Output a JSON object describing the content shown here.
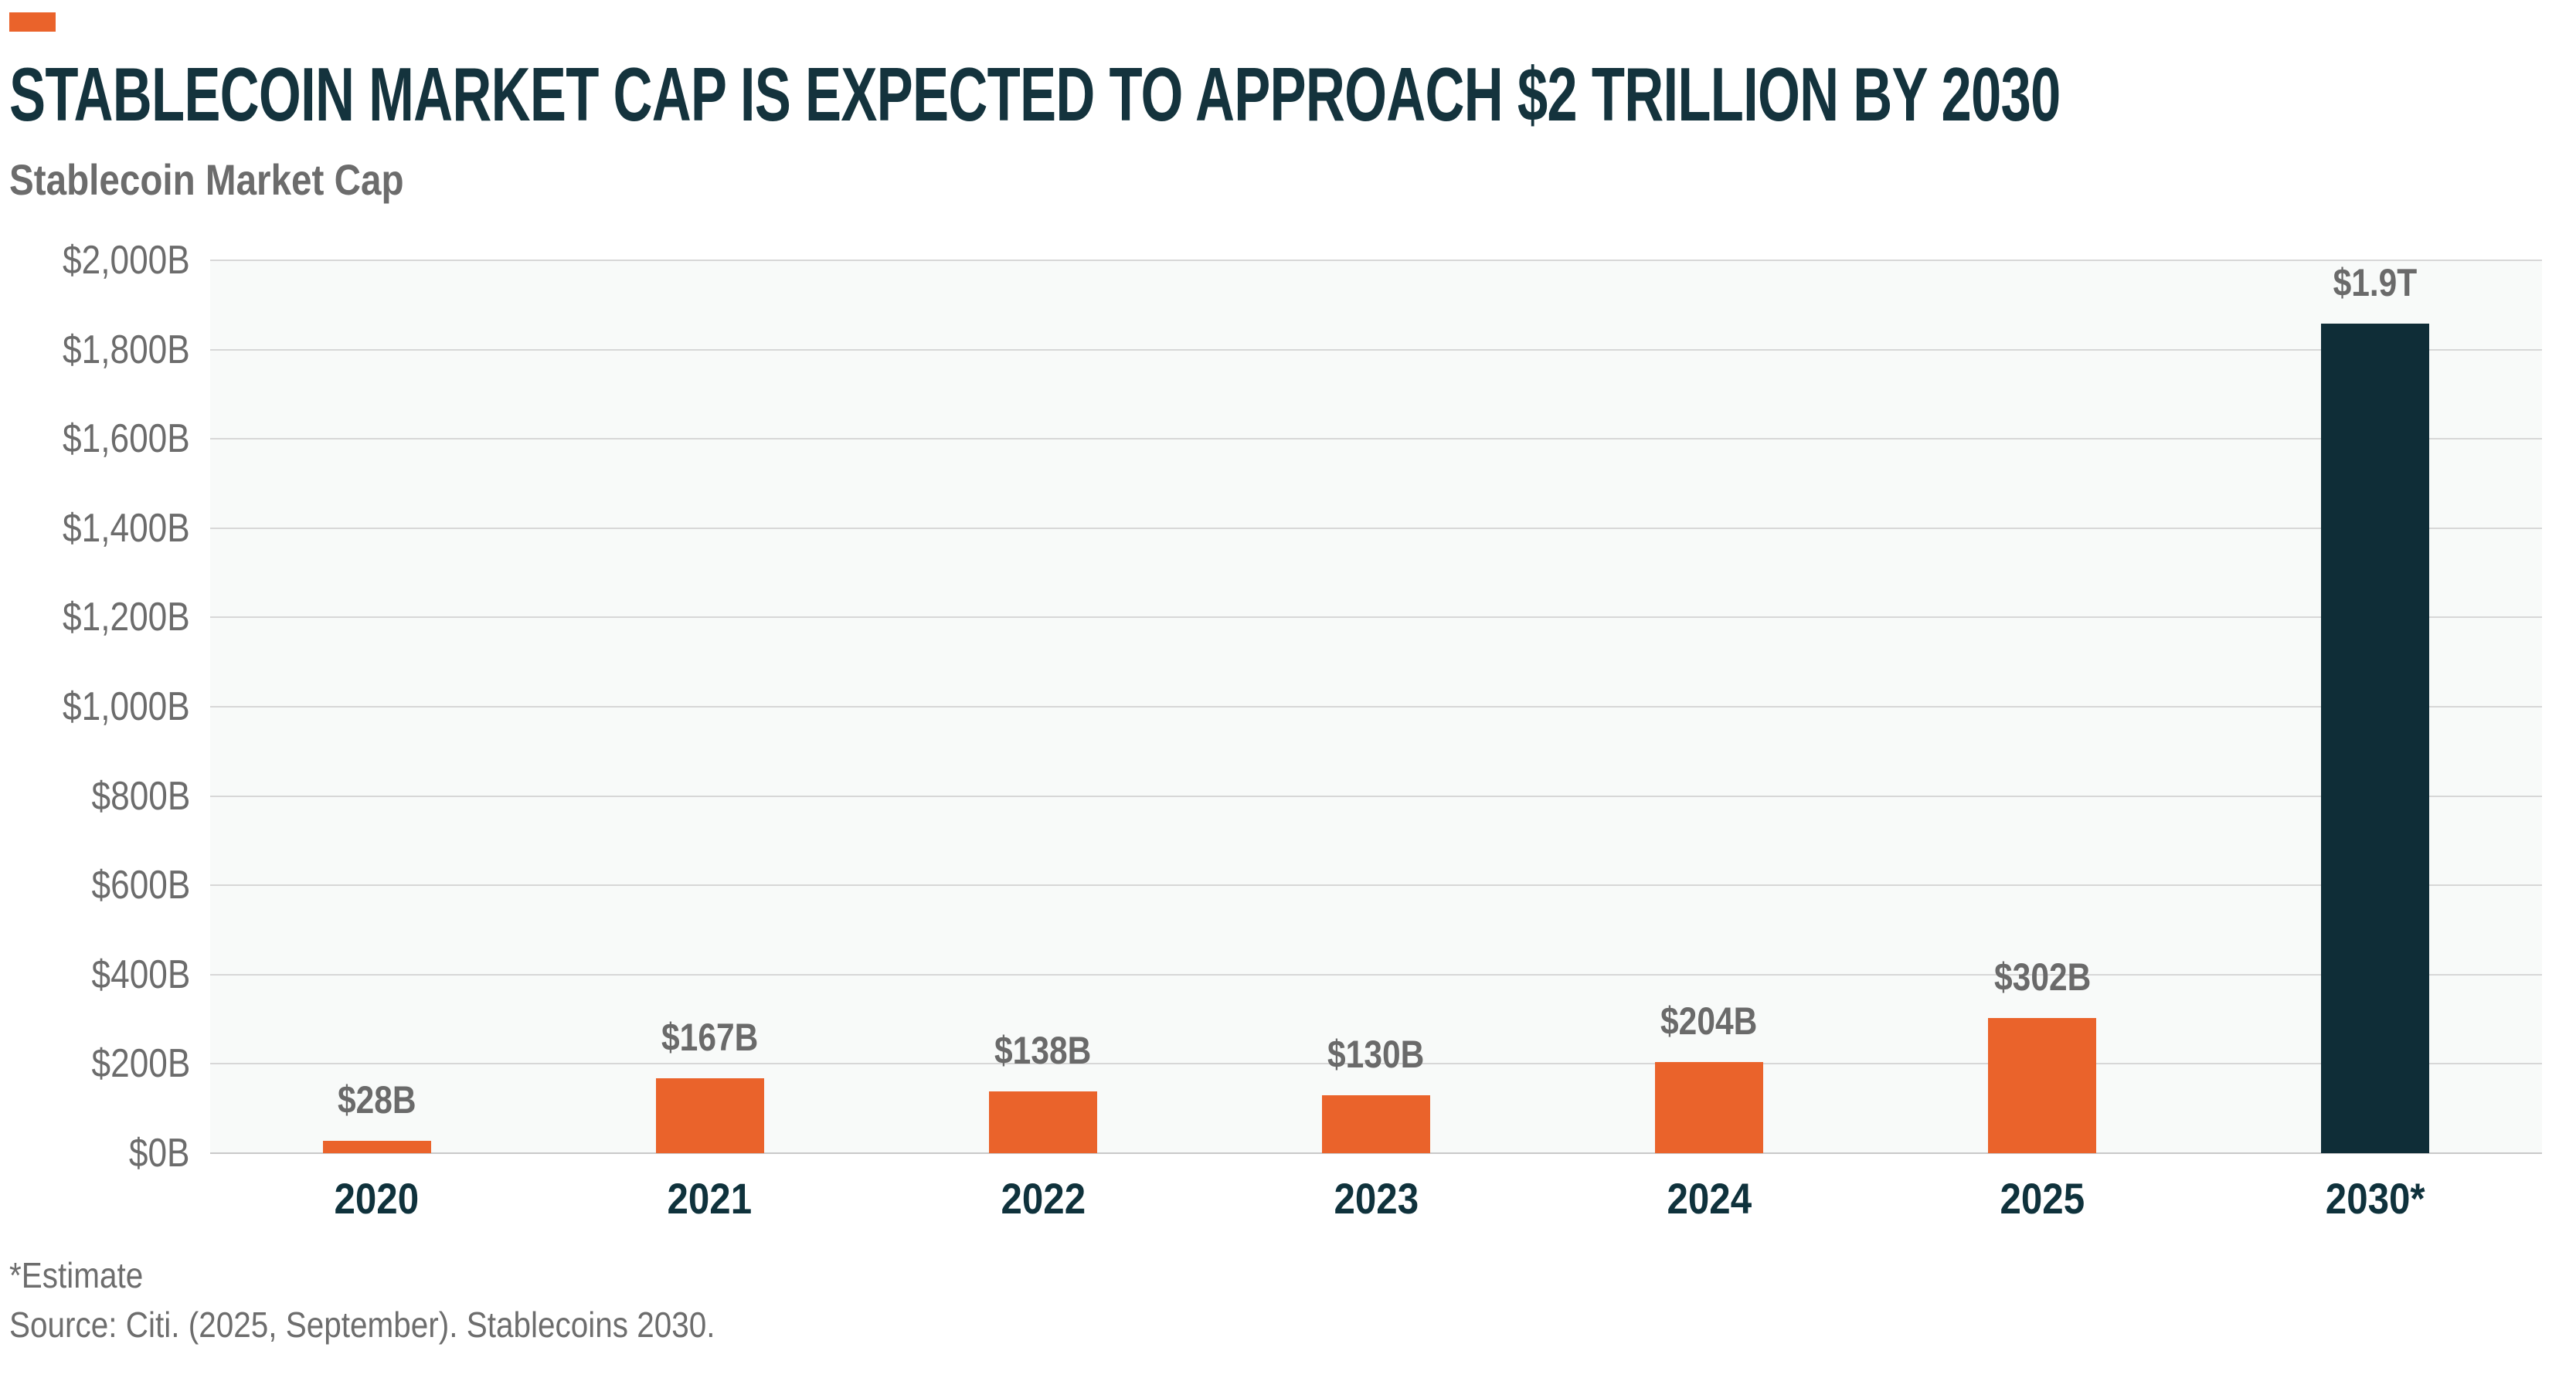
{
  "header": {
    "title": "STABLECOIN MARKET CAP IS EXPECTED TO APPROACH $2 TRILLION BY 2030",
    "subtitle": "Stablecoin Market Cap"
  },
  "footer": {
    "footnote": "*Estimate",
    "source": "Source: Citi. (2025, September). Stablecoins 2030."
  },
  "colors": {
    "accent_orange": "#EA632B",
    "bar_orange": "#EA632B",
    "bar_navy": "#0F2D37",
    "title_navy": "#14333D",
    "label_gray": "#6A6A6A",
    "year_navy": "#0F323C",
    "plot_background": "#F8FAF9",
    "gridline_gray": "#D7D7D7"
  },
  "chart_data": {
    "type": "bar",
    "title": "Stablecoin Market Cap",
    "categories": [
      "2020",
      "2021",
      "2022",
      "2023",
      "2024",
      "2025",
      "2030*"
    ],
    "values": [
      28,
      167,
      138,
      130,
      204,
      302,
      1900
    ],
    "value_labels": [
      "$28B",
      "$167B",
      "$138B",
      "$130B",
      "$204B",
      "$302B",
      "$1.9T"
    ],
    "bar_colors": [
      "#EA632B",
      "#EA632B",
      "#EA632B",
      "#EA632B",
      "#EA632B",
      "#EA632B",
      "#0F2D37"
    ],
    "units": "USD billions",
    "xlabel": "",
    "ylabel": "",
    "ylim": [
      0,
      2000
    ],
    "ytick_step": 200,
    "ytick_labels_bottom_up": [
      "$0B",
      "$200B",
      "$400B",
      "$600B",
      "$800B",
      "$1,000B",
      "$1,200B",
      "$1,400B",
      "$1,600B",
      "$1,800B",
      "$2,000B"
    ],
    "grid": "horizontal",
    "legend": "none"
  }
}
